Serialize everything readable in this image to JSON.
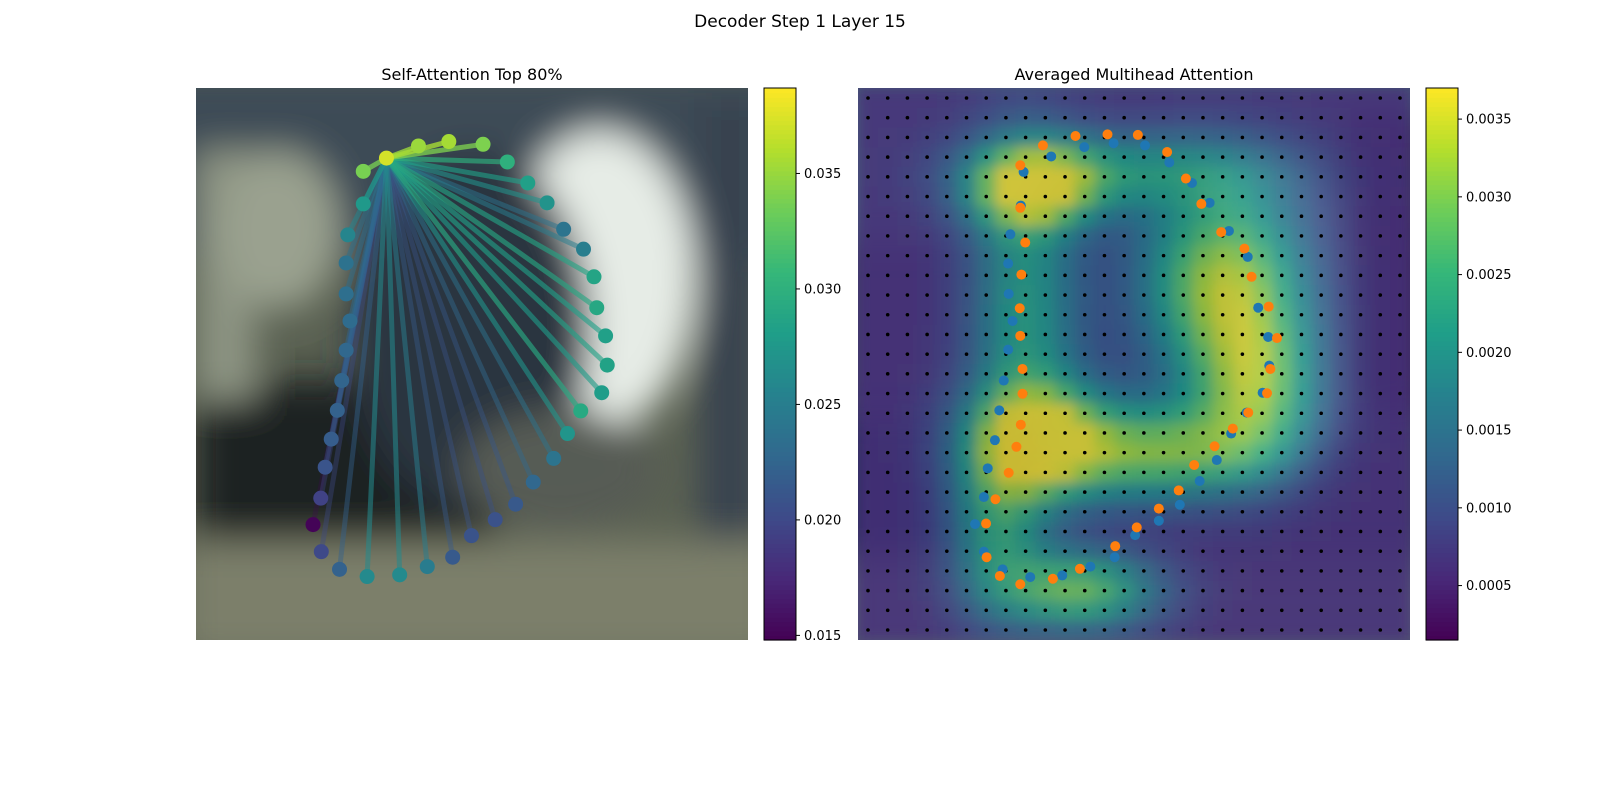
{
  "figure": {
    "title": "Decoder Step 1 Layer 15"
  },
  "chart_data": [
    {
      "type": "scatter",
      "title": "Self-Attention Top 80%",
      "description_kind": "graph of contour points; lines from query point to attended points colored by attention weight",
      "colormap": "viridis",
      "colorbar": {
        "min": 0.0148,
        "max": 0.0387,
        "ticks": [
          "0.015",
          "0.020",
          "0.025",
          "0.030",
          "0.035"
        ]
      },
      "query_index": 0,
      "points": [
        {
          "x": 0.345,
          "y": 0.127,
          "v": 0.0372
        },
        {
          "x": 0.403,
          "y": 0.105,
          "v": 0.0351
        },
        {
          "x": 0.458,
          "y": 0.097,
          "v": 0.0355
        },
        {
          "x": 0.52,
          "y": 0.102,
          "v": 0.034
        },
        {
          "x": 0.564,
          "y": 0.134,
          "v": 0.03
        },
        {
          "x": 0.601,
          "y": 0.172,
          "v": 0.0283
        },
        {
          "x": 0.636,
          "y": 0.208,
          "v": 0.027
        },
        {
          "x": 0.666,
          "y": 0.256,
          "v": 0.024
        },
        {
          "x": 0.702,
          "y": 0.292,
          "v": 0.025
        },
        {
          "x": 0.721,
          "y": 0.342,
          "v": 0.0287
        },
        {
          "x": 0.726,
          "y": 0.398,
          "v": 0.029
        },
        {
          "x": 0.742,
          "y": 0.449,
          "v": 0.0283
        },
        {
          "x": 0.745,
          "y": 0.502,
          "v": 0.0285
        },
        {
          "x": 0.735,
          "y": 0.552,
          "v": 0.028
        },
        {
          "x": 0.697,
          "y": 0.585,
          "v": 0.0292
        },
        {
          "x": 0.673,
          "y": 0.626,
          "v": 0.0272
        },
        {
          "x": 0.648,
          "y": 0.671,
          "v": 0.024
        },
        {
          "x": 0.611,
          "y": 0.714,
          "v": 0.0228
        },
        {
          "x": 0.579,
          "y": 0.754,
          "v": 0.0214
        },
        {
          "x": 0.542,
          "y": 0.782,
          "v": 0.0208
        },
        {
          "x": 0.499,
          "y": 0.811,
          "v": 0.0209
        },
        {
          "x": 0.465,
          "y": 0.85,
          "v": 0.0215
        },
        {
          "x": 0.419,
          "y": 0.867,
          "v": 0.0248
        },
        {
          "x": 0.369,
          "y": 0.882,
          "v": 0.0262
        },
        {
          "x": 0.31,
          "y": 0.885,
          "v": 0.0262
        },
        {
          "x": 0.26,
          "y": 0.872,
          "v": 0.0222
        },
        {
          "x": 0.227,
          "y": 0.84,
          "v": 0.02
        },
        {
          "x": 0.212,
          "y": 0.791,
          "v": 0.015
        },
        {
          "x": 0.226,
          "y": 0.743,
          "v": 0.0195
        },
        {
          "x": 0.234,
          "y": 0.687,
          "v": 0.021
        },
        {
          "x": 0.245,
          "y": 0.636,
          "v": 0.0218
        },
        {
          "x": 0.256,
          "y": 0.584,
          "v": 0.0222
        },
        {
          "x": 0.264,
          "y": 0.53,
          "v": 0.0225
        },
        {
          "x": 0.272,
          "y": 0.475,
          "v": 0.0228
        },
        {
          "x": 0.279,
          "y": 0.422,
          "v": 0.0232
        },
        {
          "x": 0.272,
          "y": 0.373,
          "v": 0.0235
        },
        {
          "x": 0.272,
          "y": 0.317,
          "v": 0.0238
        },
        {
          "x": 0.275,
          "y": 0.266,
          "v": 0.0257
        },
        {
          "x": 0.303,
          "y": 0.21,
          "v": 0.0276
        },
        {
          "x": 0.303,
          "y": 0.151,
          "v": 0.0338
        }
      ]
    },
    {
      "type": "heatmap",
      "title": "Averaged Multihead Attention",
      "colormap": "viridis",
      "colorbar": {
        "min": 0.00015,
        "max": 0.0037,
        "ticks": [
          "0.0005",
          "0.0010",
          "0.0015",
          "0.0020",
          "0.0025",
          "0.0030",
          "0.0035"
        ]
      },
      "grid": {
        "rows": 28,
        "cols": 28,
        "note": "black dots mark grid sampling positions"
      },
      "series": [
        {
          "color": "#1f77b4",
          "points": [
            [
              0.3,
              0.152
            ],
            [
              0.35,
              0.124
            ],
            [
              0.41,
              0.107
            ],
            [
              0.463,
              0.1
            ],
            [
              0.52,
              0.104
            ],
            [
              0.564,
              0.135
            ],
            [
              0.605,
              0.172
            ],
            [
              0.637,
              0.208
            ],
            [
              0.672,
              0.259
            ],
            [
              0.706,
              0.306
            ],
            [
              0.725,
              0.398
            ],
            [
              0.743,
              0.451
            ],
            [
              0.745,
              0.503
            ],
            [
              0.733,
              0.552
            ],
            [
              0.704,
              0.588
            ],
            [
              0.676,
              0.626
            ],
            [
              0.65,
              0.674
            ],
            [
              0.619,
              0.712
            ],
            [
              0.583,
              0.755
            ],
            [
              0.545,
              0.784
            ],
            [
              0.502,
              0.81
            ],
            [
              0.465,
              0.85
            ],
            [
              0.421,
              0.867
            ],
            [
              0.37,
              0.883
            ],
            [
              0.312,
              0.886
            ],
            [
              0.262,
              0.872
            ],
            [
              0.228,
              0.84
            ],
            [
              0.212,
              0.79
            ],
            [
              0.228,
              0.741
            ],
            [
              0.235,
              0.689
            ],
            [
              0.248,
              0.638
            ],
            [
              0.256,
              0.584
            ],
            [
              0.264,
              0.53
            ],
            [
              0.272,
              0.474
            ],
            [
              0.28,
              0.422
            ],
            [
              0.273,
              0.373
            ],
            [
              0.272,
              0.318
            ],
            [
              0.276,
              0.265
            ],
            [
              0.295,
              0.213
            ]
          ]
        },
        {
          "color": "#ff7f0e",
          "points": [
            [
              0.294,
              0.14
            ],
            [
              0.335,
              0.104
            ],
            [
              0.394,
              0.087
            ],
            [
              0.452,
              0.084
            ],
            [
              0.507,
              0.085
            ],
            [
              0.56,
              0.116
            ],
            [
              0.594,
              0.164
            ],
            [
              0.622,
              0.21
            ],
            [
              0.658,
              0.261
            ],
            [
              0.7,
              0.291
            ],
            [
              0.713,
              0.342
            ],
            [
              0.744,
              0.396
            ],
            [
              0.759,
              0.453
            ],
            [
              0.747,
              0.509
            ],
            [
              0.741,
              0.553
            ],
            [
              0.707,
              0.588
            ],
            [
              0.679,
              0.617
            ],
            [
              0.646,
              0.649
            ],
            [
              0.609,
              0.683
            ],
            [
              0.581,
              0.729
            ],
            [
              0.545,
              0.762
            ],
            [
              0.505,
              0.796
            ],
            [
              0.466,
              0.83
            ],
            [
              0.402,
              0.871
            ],
            [
              0.353,
              0.889
            ],
            [
              0.294,
              0.899
            ],
            [
              0.257,
              0.884
            ],
            [
              0.233,
              0.85
            ],
            [
              0.232,
              0.789
            ],
            [
              0.249,
              0.745
            ],
            [
              0.273,
              0.697
            ],
            [
              0.287,
              0.65
            ],
            [
              0.295,
              0.61
            ],
            [
              0.298,
              0.554
            ],
            [
              0.298,
              0.509
            ],
            [
              0.294,
              0.449
            ],
            [
              0.293,
              0.399
            ],
            [
              0.296,
              0.338
            ],
            [
              0.303,
              0.28
            ],
            [
              0.294,
              0.217
            ]
          ]
        }
      ]
    }
  ]
}
